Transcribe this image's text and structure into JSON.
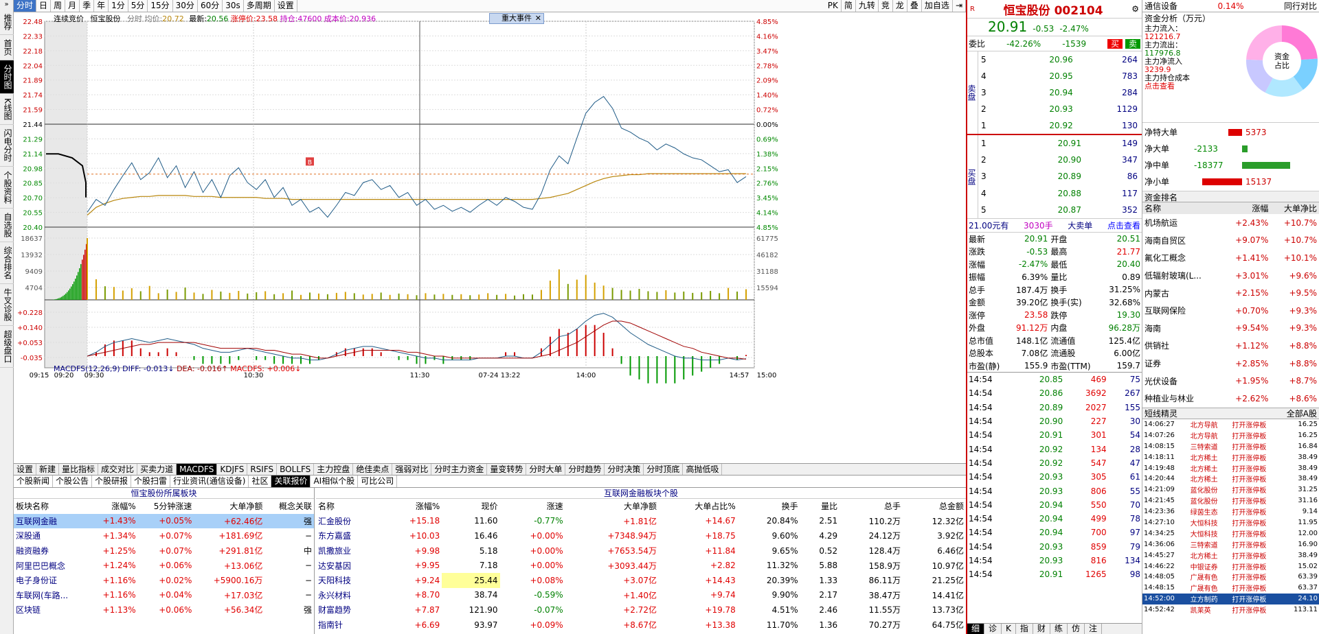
{
  "leftnav": [
    "推荐",
    "首页",
    "分时图",
    "K线图",
    "闪电分时",
    "个股资料",
    "自选股",
    "综合排名",
    "牛叉诊股",
    "超级盘口"
  ],
  "leftnav_active": 2,
  "toolbar_left": [
    "分时",
    "日",
    "周",
    "月",
    "季",
    "年",
    "1分",
    "5分",
    "15分",
    "30分",
    "60分",
    "30s",
    "多周期",
    "设置"
  ],
  "toolbar_active": 0,
  "toolbar_right": [
    "PK",
    "简",
    "九转",
    "竞",
    "龙",
    "叠",
    "加自选"
  ],
  "chart_info": {
    "mode": "连续竞价",
    "name": "恒宝股份",
    "legend": "分时 均价:",
    "avg": "20.72",
    "latest_label": "最新:",
    "latest": "20.56",
    "limit_label": "涨停价:",
    "limit": "23.58",
    "pos_label": "持仓:",
    "pos": "47600",
    "cost_label": "成本价:",
    "cost": "20.936"
  },
  "event_btn": "重大事件",
  "macd_label": {
    "name": "MACDFS(12,26,9)",
    "diff": "DIFF: -0.013↓",
    "dea": "DEA: -0.016↑",
    "macdfs": "MACDFS: +0.006↓"
  },
  "chart_data": {
    "type": "line",
    "price_axis": [
      "22.48",
      "22.33",
      "22.18",
      "22.04",
      "21.89",
      "21.74",
      "21.59",
      "21.44",
      "21.29",
      "21.14",
      "20.98",
      "20.85",
      "20.70",
      "20.55",
      "20.40"
    ],
    "pct_axis": [
      "4.85%",
      "4.16%",
      "3.47%",
      "2.78%",
      "2.09%",
      "1.40%",
      "0.72%",
      "0.00%",
      "0.69%",
      "1.38%",
      "2.15%",
      "2.76%",
      "3.45%",
      "4.14%",
      "4.85%"
    ],
    "vol_axis": [
      "18637",
      "13932",
      "9409",
      "4704"
    ],
    "vol_axis_right": [
      "61775",
      "46182",
      "31188",
      "15594"
    ],
    "macd_axis": [
      "+0.228",
      "+0.140",
      "+0.053",
      "-0.035"
    ],
    "time_axis": [
      "09:15",
      "09:20",
      "09:30",
      "10:30",
      "11:30",
      "07-24 13:22",
      "14:00",
      "14:57",
      "15:00"
    ],
    "prev_close": 21.44,
    "price": [
      20.55,
      20.68,
      20.62,
      20.78,
      20.92,
      21.05,
      20.88,
      20.95,
      21.1,
      20.9,
      21.02,
      20.8,
      20.96,
      20.75,
      20.88,
      20.7,
      20.92,
      21.0,
      20.85,
      20.78,
      20.88,
      20.7,
      20.8,
      20.62,
      20.68,
      20.55,
      20.6,
      20.5,
      20.62,
      20.75,
      20.72,
      20.85,
      20.88,
      20.78,
      20.82,
      20.7,
      20.75,
      20.62,
      20.68,
      20.58,
      20.62,
      20.56,
      20.6,
      20.55,
      20.62,
      20.68,
      20.62,
      20.7,
      20.66,
      20.6,
      20.58,
      20.74,
      20.98,
      21.12,
      21.04,
      21.3,
      21.55,
      21.66,
      21.72,
      21.6,
      21.4,
      21.36,
      21.3,
      21.26,
      21.18,
      21.24,
      21.2,
      21.14,
      21.1,
      21.08,
      21.02,
      20.96,
      20.98,
      20.85,
      20.91
    ],
    "avg": [
      20.52,
      20.6,
      20.64,
      20.67,
      20.69,
      20.7,
      20.71,
      20.71,
      20.72,
      20.72,
      20.72,
      20.72,
      20.71,
      20.71,
      20.71,
      20.7,
      20.7,
      20.7,
      20.7,
      20.7,
      20.69,
      20.69,
      20.69,
      20.68,
      20.68,
      20.68,
      20.68,
      20.68,
      20.68,
      20.68,
      20.68,
      20.68,
      20.68,
      20.68,
      20.68,
      20.68,
      20.68,
      20.68,
      20.68,
      20.68,
      20.68,
      20.68,
      20.68,
      20.68,
      20.68,
      20.68,
      20.68,
      20.68,
      20.68,
      20.68,
      20.68,
      20.69,
      20.7,
      20.72,
      20.74,
      20.78,
      20.82,
      20.86,
      20.89,
      20.91,
      20.92,
      20.93,
      20.93,
      20.94,
      20.94,
      20.94,
      20.94,
      20.94,
      20.94,
      20.94,
      20.94,
      20.94,
      20.94,
      20.94,
      20.94
    ],
    "volume": [
      18637,
      6200,
      4100,
      3900,
      2800,
      3500,
      2600,
      4200,
      2000,
      3100,
      2400,
      3700,
      2200,
      1800,
      3000,
      2500,
      2100,
      2700,
      1900,
      2300,
      2600,
      1700,
      2000,
      2800,
      1500,
      2200,
      1900,
      1700,
      2100,
      2400,
      2000,
      1600,
      1800,
      2200,
      1500,
      1900,
      1700,
      1400,
      2000,
      1600,
      1800,
      1500,
      1700,
      1400,
      1600,
      2000,
      1500,
      1800,
      1300,
      1700,
      1600,
      3000,
      5800,
      9200,
      4800,
      6100,
      7500,
      5200,
      4300,
      3600,
      3000,
      2800,
      3300,
      2600,
      2400,
      2900,
      2200,
      2500,
      2100,
      2300,
      2700,
      2000,
      3600,
      2500,
      3200
    ],
    "macd_diff": [
      0.0,
      0.02,
      0.05,
      0.07,
      0.08,
      0.09,
      0.08,
      0.07,
      0.08,
      0.09,
      0.08,
      0.07,
      0.06,
      0.04,
      0.03,
      0.02,
      0.02,
      0.03,
      0.04,
      0.03,
      0.02,
      0.01,
      0.0,
      -0.01,
      -0.01,
      -0.02,
      -0.02,
      -0.01,
      0.01,
      0.03,
      0.04,
      0.05,
      0.05,
      0.04,
      0.03,
      0.02,
      0.01,
      0.0,
      -0.01,
      -0.01,
      -0.02,
      -0.02,
      -0.02,
      -0.02,
      -0.01,
      -0.01,
      -0.01,
      0.0,
      0.0,
      -0.01,
      -0.01,
      0.02,
      0.06,
      0.1,
      0.11,
      0.14,
      0.18,
      0.21,
      0.22,
      0.2,
      0.16,
      0.12,
      0.09,
      0.06,
      0.04,
      0.02,
      0.0,
      -0.01,
      -0.01,
      -0.02,
      -0.02,
      -0.02,
      -0.01,
      -0.02,
      -0.013
    ],
    "macd_dea": [
      0.0,
      0.01,
      0.02,
      0.03,
      0.04,
      0.05,
      0.06,
      0.06,
      0.07,
      0.07,
      0.07,
      0.07,
      0.07,
      0.06,
      0.05,
      0.04,
      0.04,
      0.04,
      0.04,
      0.04,
      0.03,
      0.03,
      0.02,
      0.01,
      0.01,
      0.0,
      -0.01,
      -0.01,
      0.0,
      0.01,
      0.02,
      0.03,
      0.03,
      0.03,
      0.03,
      0.03,
      0.02,
      0.02,
      0.01,
      0.0,
      0.0,
      -0.01,
      -0.01,
      -0.01,
      -0.01,
      -0.01,
      -0.01,
      -0.01,
      -0.01,
      -0.01,
      -0.01,
      0.0,
      0.01,
      0.03,
      0.05,
      0.07,
      0.1,
      0.13,
      0.16,
      0.18,
      0.18,
      0.17,
      0.15,
      0.13,
      0.11,
      0.09,
      0.07,
      0.05,
      0.04,
      0.02,
      0.01,
      0.0,
      -0.01,
      -0.01,
      -0.016
    ]
  },
  "ticktabs": [
    "设置",
    "新建",
    "量比指标",
    "成交对比",
    "买卖力道",
    "MACDFS",
    "KDJFS",
    "RSIFS",
    "BOLLFS",
    "主力控盘",
    "绝佳卖点",
    "强弱对比",
    "分时主力资金",
    "量变转势",
    "分时大单",
    "分时趋势",
    "分时决策",
    "分时顶底",
    "高抛低吸"
  ],
  "ticktab_active": 5,
  "subtabs": [
    "个股新闻",
    "个股公告",
    "个股研报",
    "个股扫雷",
    "行业资讯(通信设备)",
    "社区",
    "关联报价",
    "AI相似个股",
    "可比公司"
  ],
  "subtab_active": 6,
  "sector_panel": {
    "title": "恒宝股份所属板块",
    "headers": [
      "板块名称",
      "涨幅%",
      "5分钟涨速",
      "大单净额",
      "概念关联"
    ],
    "rows": [
      [
        "互联网金融",
        "+1.43%",
        "+0.05%",
        "+62.46亿",
        "强"
      ],
      [
        "深股通",
        "+1.34%",
        "+0.07%",
        "+181.69亿",
        "−"
      ],
      [
        "融资融券",
        "+1.25%",
        "+0.07%",
        "+291.81亿",
        "中"
      ],
      [
        "阿里巴巴概念",
        "+1.24%",
        "+0.06%",
        "+13.06亿",
        "−"
      ],
      [
        "电子身份证",
        "+1.16%",
        "+0.02%",
        "+5900.16万",
        "−"
      ],
      [
        "车联网(车路...",
        "+1.16%",
        "+0.04%",
        "+17.03亿",
        "−"
      ],
      [
        "区块链",
        "+1.13%",
        "+0.06%",
        "+56.34亿",
        "强"
      ]
    ]
  },
  "stock_panel": {
    "title": "互联网金融板块个股",
    "headers": [
      "名称",
      "涨幅%",
      "现价",
      "涨速",
      "大单净额",
      "大单占比%",
      "换手",
      "量比",
      "总手",
      "总金额"
    ],
    "rows": [
      [
        "汇金股份",
        "+15.18",
        "11.60",
        "-0.77%",
        "+1.81亿",
        "+14.67",
        "20.84%",
        "2.51",
        "110.2万",
        "12.32亿"
      ],
      [
        "东方嘉盛",
        "+10.03",
        "16.46",
        "+0.00%",
        "+7348.94万",
        "+18.75",
        "9.60%",
        "4.29",
        "24.12万",
        "3.92亿"
      ],
      [
        "凯撒旅业",
        "+9.98",
        "5.18",
        "+0.00%",
        "+7653.54万",
        "+11.84",
        "9.65%",
        "0.52",
        "128.4万",
        "6.46亿"
      ],
      [
        "达安基因",
        "+9.95",
        "7.18",
        "+0.00%",
        "+3093.44万",
        "+2.82",
        "11.32%",
        "5.88",
        "158.9万",
        "10.97亿"
      ],
      [
        "天阳科技",
        "+9.24",
        "25.44",
        "+0.08%",
        "+3.07亿",
        "+14.43",
        "20.39%",
        "1.33",
        "86.11万",
        "21.25亿"
      ],
      [
        "永兴材料",
        "+8.70",
        "38.74",
        "-0.59%",
        "+1.40亿",
        "+9.74",
        "9.90%",
        "2.17",
        "38.47万",
        "14.41亿"
      ],
      [
        "财富趋势",
        "+7.87",
        "121.90",
        "-0.07%",
        "+2.72亿",
        "+19.78",
        "4.51%",
        "2.46",
        "11.55万",
        "13.73亿"
      ],
      [
        "指南针",
        "+6.69",
        "93.97",
        "+0.09%",
        "+8.67亿",
        "+13.38",
        "11.70%",
        "1.36",
        "70.27万",
        "64.75亿"
      ]
    ]
  },
  "quote": {
    "name": "恒宝股份",
    "code": "002104",
    "price": "20.91",
    "change": "-0.53",
    "pct": "-2.47%",
    "weibi_label": "委比",
    "weibi": "-42.26%",
    "weicha": "-1539",
    "buy_btn": "买",
    "sell_btn": "卖",
    "sells": [
      [
        "5",
        "20.96",
        "264"
      ],
      [
        "4",
        "20.95",
        "783"
      ],
      [
        "3",
        "20.94",
        "284"
      ],
      [
        "2",
        "20.93",
        "1129"
      ],
      [
        "1",
        "20.92",
        "130"
      ]
    ],
    "buys": [
      [
        "1",
        "20.91",
        "149"
      ],
      [
        "2",
        "20.90",
        "347"
      ],
      [
        "3",
        "20.89",
        "86"
      ],
      [
        "4",
        "20.88",
        "117"
      ],
      [
        "5",
        "20.87",
        "352"
      ]
    ],
    "sell_label": "卖盘",
    "buy_label": "买盘",
    "bigorder": {
      "price": "21.00元有",
      "vol": "3030手",
      "label": "大卖单",
      "link": "点击查看"
    },
    "stats": [
      [
        "最新",
        "20.91",
        "开盘",
        "20.51"
      ],
      [
        "涨跌",
        "-0.53",
        "最高",
        "21.77"
      ],
      [
        "涨幅",
        "-2.47%",
        "最低",
        "20.40"
      ],
      [
        "振幅",
        "6.39%",
        "量比",
        "0.89"
      ],
      [
        "总手",
        "187.4万",
        "换手",
        "31.25%"
      ],
      [
        "金额",
        "39.20亿",
        "换手(实)",
        "32.68%"
      ],
      [
        "涨停",
        "23.58",
        "跌停",
        "19.30"
      ],
      [
        "外盘",
        "91.12万",
        "内盘",
        "96.28万"
      ],
      [
        "总市值",
        "148.1亿",
        "流通值",
        "125.4亿"
      ],
      [
        "总股本",
        "7.08亿",
        "流通股",
        "6.00亿"
      ],
      [
        "市盈(静)",
        "155.9",
        "市盈(TTM)",
        "159.7"
      ]
    ],
    "ticks": [
      [
        "14:54",
        "20.85",
        "469",
        "75"
      ],
      [
        "14:54",
        "20.86",
        "3692",
        "267"
      ],
      [
        "14:54",
        "20.89",
        "2027",
        "155"
      ],
      [
        "14:54",
        "20.90",
        "227",
        "30"
      ],
      [
        "14:54",
        "20.91",
        "301",
        "54"
      ],
      [
        "14:54",
        "20.92",
        "134",
        "28"
      ],
      [
        "14:54",
        "20.92",
        "547",
        "47"
      ],
      [
        "14:54",
        "20.93",
        "305",
        "61"
      ],
      [
        "14:54",
        "20.93",
        "806",
        "55"
      ],
      [
        "14:54",
        "20.94",
        "550",
        "70"
      ],
      [
        "14:54",
        "20.94",
        "499",
        "78"
      ],
      [
        "14:54",
        "20.94",
        "700",
        "97"
      ],
      [
        "14:54",
        "20.93",
        "859",
        "79"
      ],
      [
        "14:54",
        "20.93",
        "816",
        "134"
      ],
      [
        "14:54",
        "20.91",
        "1265",
        "98"
      ]
    ],
    "bottom_tabs": [
      "细",
      "诊",
      "K",
      "指",
      "财",
      "练",
      "仿",
      "注"
    ]
  },
  "far": {
    "sector": "通信设备",
    "sector_pct": "0.14%",
    "tab2": "同行对比",
    "funds_title": "资金分析（万元）",
    "inflow_label": "主力流入：",
    "inflow": "121216.7",
    "outflow_label": "主力流出：",
    "outflow": "117976.8",
    "net_label": "主力净流入",
    "net": "3239.9",
    "cost_label": "主力持仓成本",
    "cost_link": "点击查看",
    "donut_label": "资金占比",
    "net_rows": [
      [
        "净特大单",
        "5373"
      ],
      [
        "净大单",
        "-2133"
      ],
      [
        "净中单",
        "-18377"
      ],
      [
        "净小单",
        "15137"
      ]
    ],
    "rank_title": "资金排名",
    "rank_headers": [
      "名称",
      "涨幅",
      "大单净比"
    ],
    "rank_rows": [
      [
        "机场航运",
        "+2.43%",
        "+10.7%"
      ],
      [
        "海南自贸区",
        "+9.07%",
        "+10.7%"
      ],
      [
        "氟化工概念",
        "+1.41%",
        "+10.1%"
      ],
      [
        "低辐射玻璃(L...",
        "+3.01%",
        "+9.6%"
      ],
      [
        "内蒙古",
        "+2.15%",
        "+9.5%"
      ],
      [
        "互联网保险",
        "+0.70%",
        "+9.3%"
      ],
      [
        "海南",
        "+9.54%",
        "+9.3%"
      ],
      [
        "供销社",
        "+1.12%",
        "+8.8%"
      ],
      [
        "证券",
        "+2.85%",
        "+8.8%"
      ],
      [
        "光伏设备",
        "+1.95%",
        "+8.7%"
      ],
      [
        "种植业与林业",
        "+2.62%",
        "+8.6%"
      ]
    ],
    "short_title": "短线精灵",
    "short_filter": "全部A股",
    "short_rows": [
      [
        "14:06:27",
        "北方导航",
        "打开涨停板",
        "16.25"
      ],
      [
        "14:07:26",
        "北方导航",
        "打开涨停板",
        "16.25"
      ],
      [
        "14:08:15",
        "三特索道",
        "打开涨停板",
        "16.84"
      ],
      [
        "14:18:11",
        "北方稀土",
        "打开涨停板",
        "38.49"
      ],
      [
        "14:19:48",
        "北方稀土",
        "打开涨停板",
        "38.49"
      ],
      [
        "14:20:44",
        "北方稀土",
        "打开涨停板",
        "38.49"
      ],
      [
        "14:21:09",
        "蓝化股份",
        "打开涨停板",
        "31.25"
      ],
      [
        "14:21:45",
        "蓝化股份",
        "打开涨停板",
        "31.16"
      ],
      [
        "14:23:36",
        "绿茵生态",
        "打开涨停板",
        "9.14"
      ],
      [
        "14:27:10",
        "大恒科技",
        "打开涨停板",
        "11.95"
      ],
      [
        "14:34:25",
        "大恒科技",
        "打开涨停板",
        "12.00"
      ],
      [
        "14:36:06",
        "三特索道",
        "打开涨停板",
        "16.90"
      ],
      [
        "14:45:27",
        "北方稀土",
        "打开涨停板",
        "38.49"
      ],
      [
        "14:46:22",
        "中银证券",
        "打开涨停板",
        "15.02"
      ],
      [
        "14:48:05",
        "广晟有色",
        "打开涨停板",
        "63.39"
      ],
      [
        "14:48:15",
        "广晟有色",
        "打开涨停板",
        "63.37"
      ],
      [
        "14:52:00",
        "立方制药",
        "打开涨停板",
        "24.10"
      ],
      [
        "14:52:42",
        "凯莱英",
        "打开涨停板",
        "113.11"
      ]
    ]
  }
}
